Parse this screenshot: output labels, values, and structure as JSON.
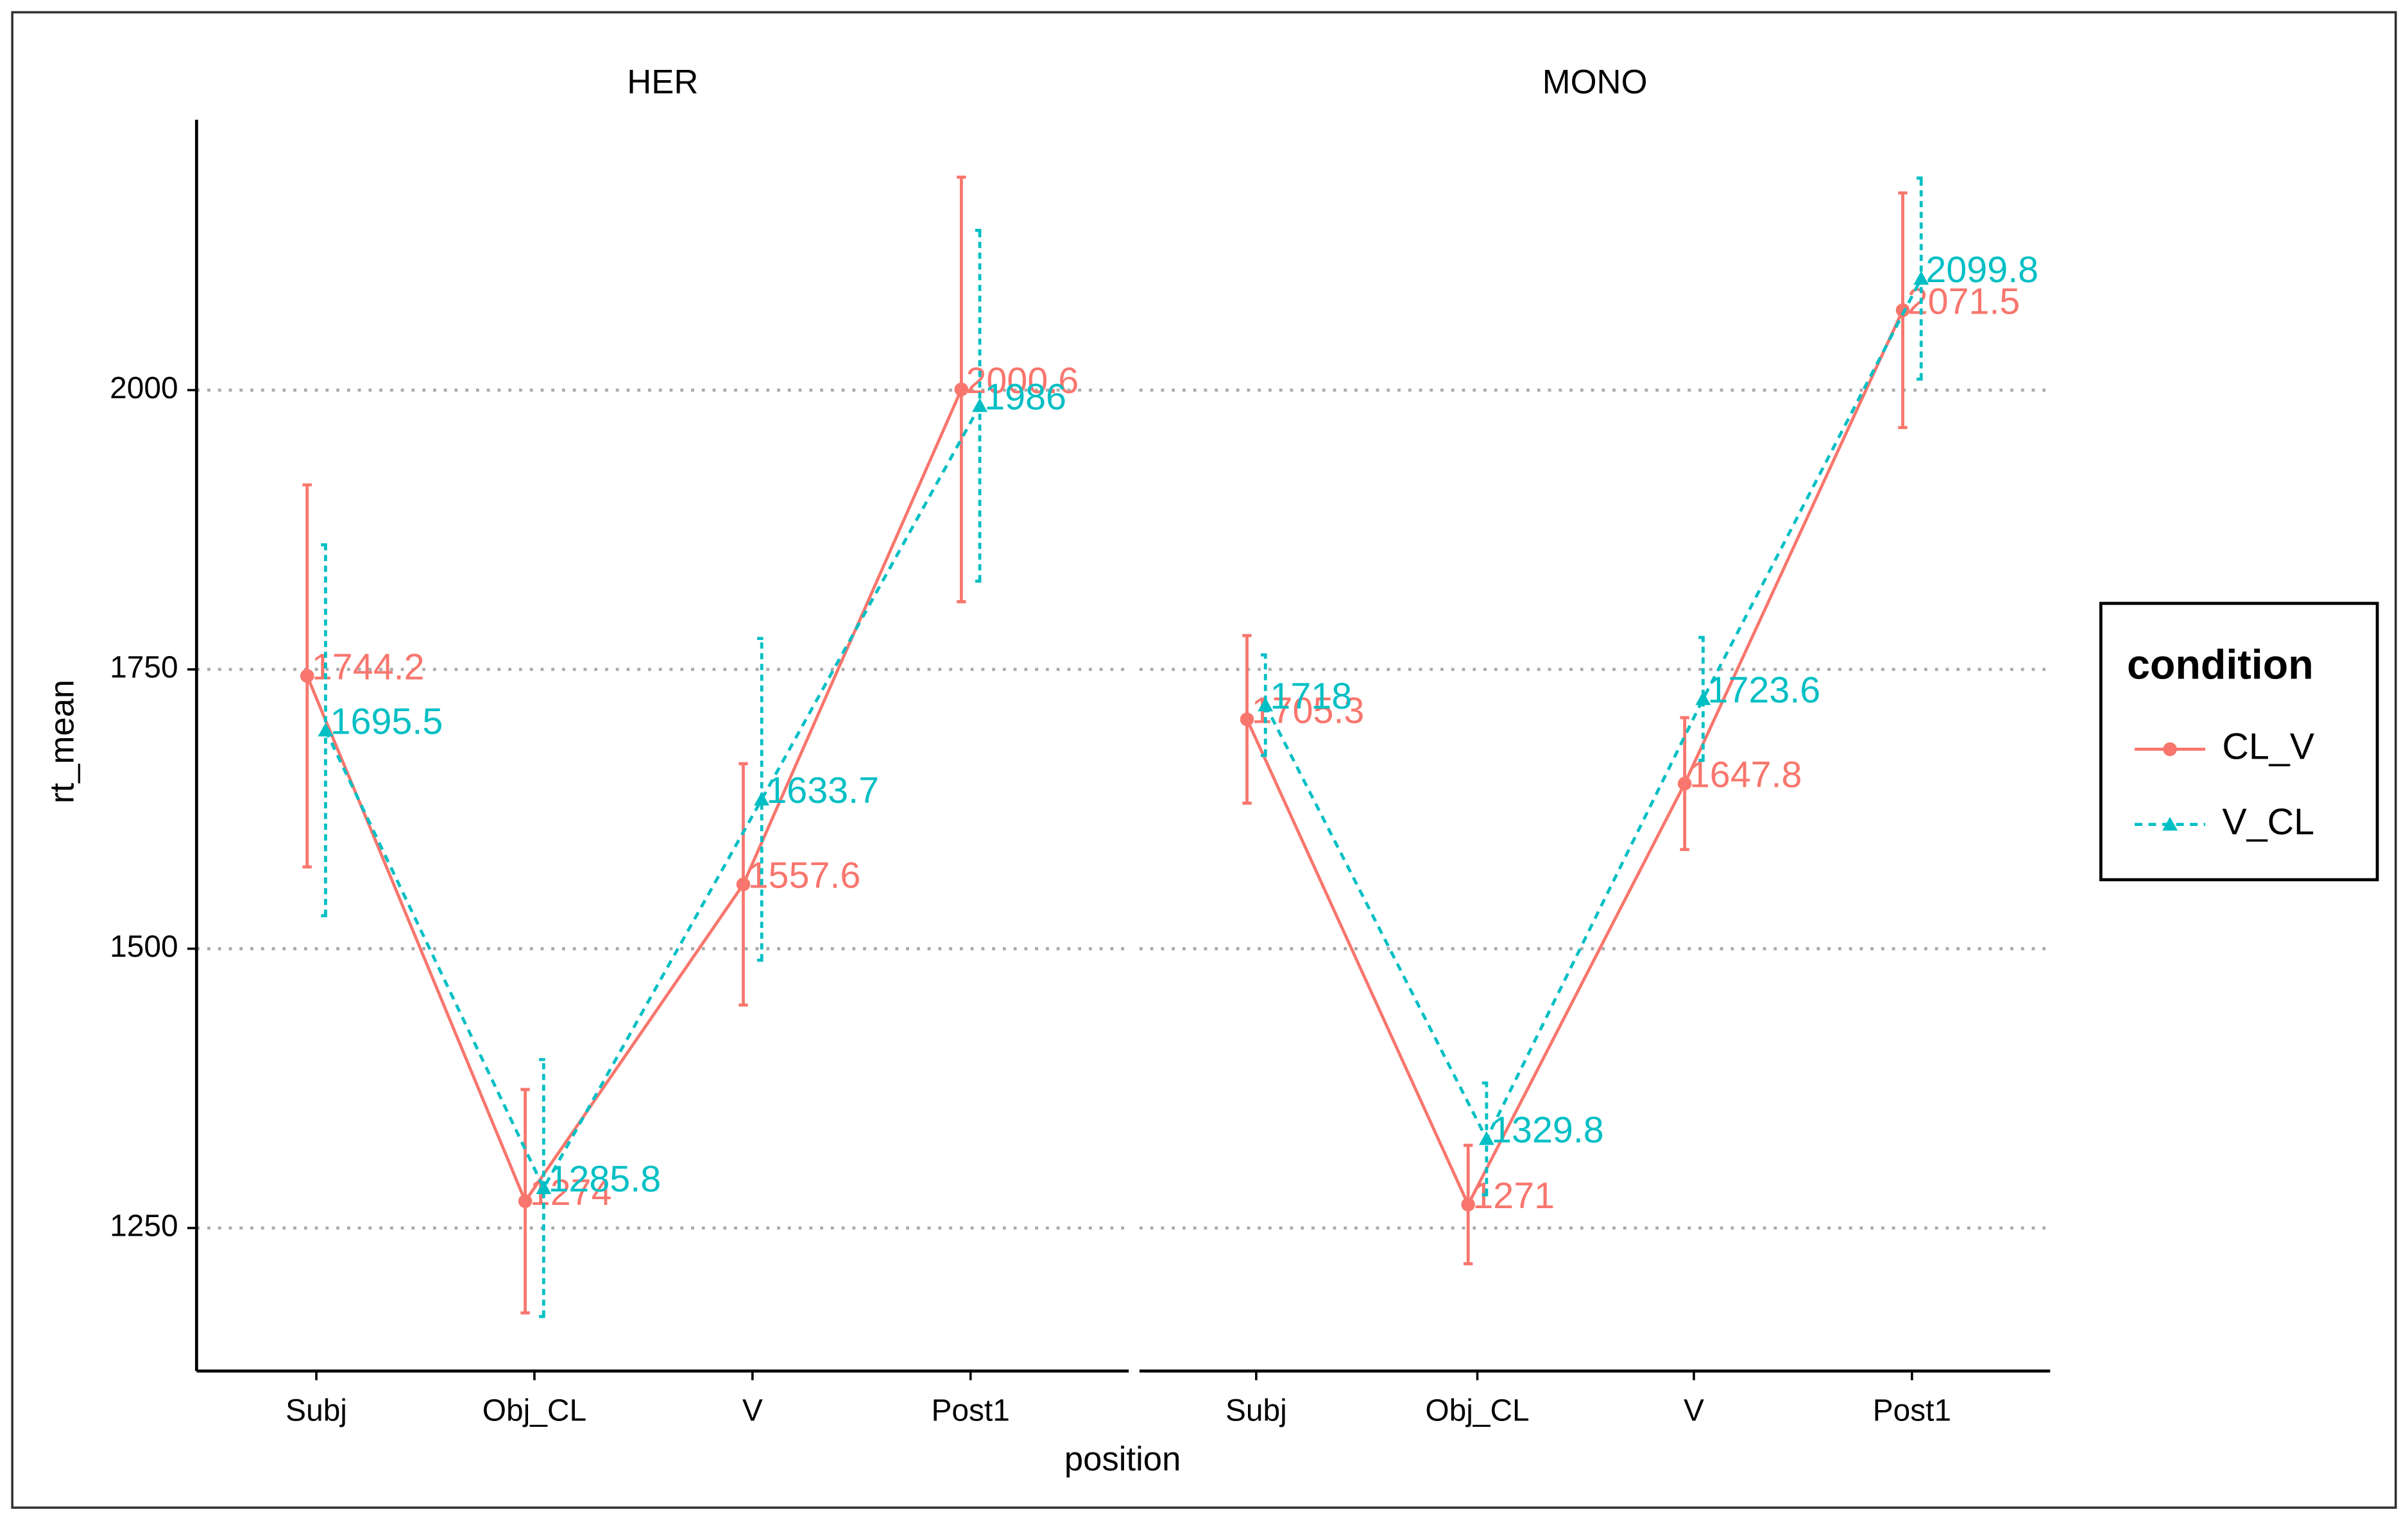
{
  "chart_data": [
    {
      "type": "line",
      "title": "HER",
      "xlabel": "position",
      "ylabel": "rt_mean",
      "legend_title": "condition",
      "legend": "right",
      "categories": [
        "Subj",
        "Obj_CL",
        "V",
        "Post1"
      ],
      "ylim": [
        1122,
        2242
      ],
      "yticks": [
        1250,
        1500,
        1750,
        2000
      ],
      "grid": true,
      "series": [
        {
          "name": "CL_V",
          "color": "#F8766D",
          "values": [
            1744.2,
            1274,
            1557.6,
            2000.6
          ],
          "errors": [
            171,
            100,
            108,
            190
          ]
        },
        {
          "name": "V_CL",
          "color": "#00BFC4",
          "values": [
            1695.5,
            1285.8,
            1633.7,
            1986
          ],
          "errors": [
            166,
            115,
            144,
            157
          ]
        }
      ]
    },
    {
      "type": "line",
      "title": "MONO",
      "categories": [
        "Subj",
        "Obj_CL",
        "V",
        "Post1"
      ],
      "ylim": [
        1122,
        2242
      ],
      "yticks": [
        1250,
        1500,
        1750,
        2000
      ],
      "grid": true,
      "series": [
        {
          "color": "#F8766D",
          "values": [
            1705.3,
            1271,
            1647.8,
            2071.5
          ],
          "errors": [
            75,
            53,
            59,
            105
          ]
        },
        {
          "color": "#00BFC4",
          "values": [
            1718,
            1329.8,
            1723.6,
            2099.8
          ],
          "errors": [
            45,
            50,
            55,
            90
          ]
        }
      ]
    }
  ]
}
